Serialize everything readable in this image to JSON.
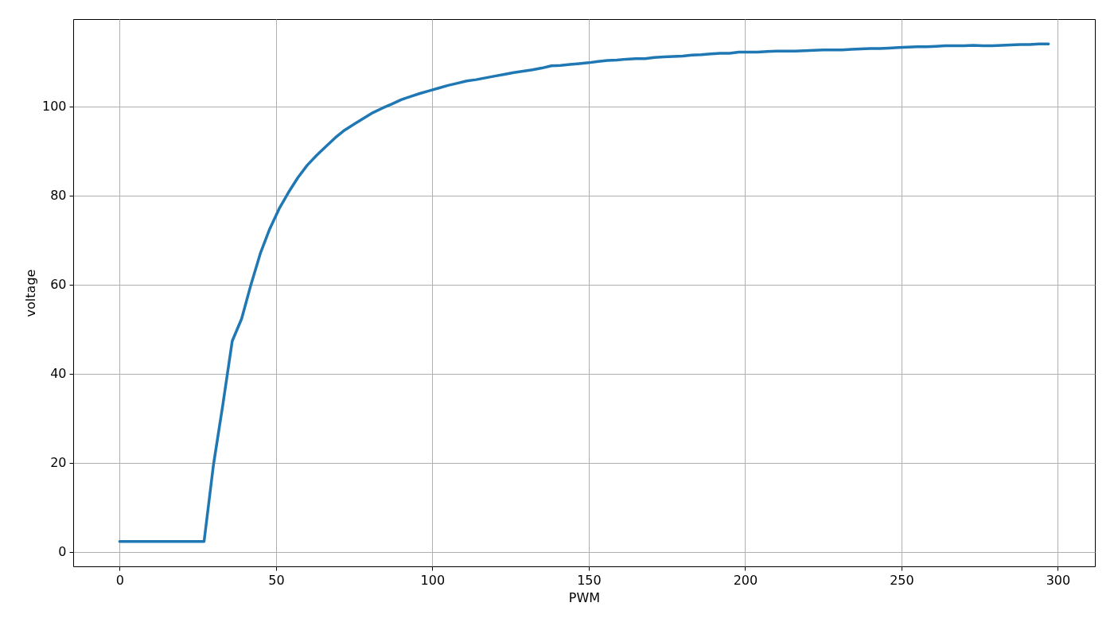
{
  "chart_data": {
    "type": "line",
    "xlabel": "PWM",
    "ylabel": "voltage",
    "x": [
      0,
      3,
      6,
      9,
      12,
      15,
      18,
      21,
      24,
      27,
      30,
      33,
      36,
      39,
      42,
      45,
      48,
      51,
      54,
      57,
      60,
      63,
      66,
      69,
      72,
      75,
      78,
      81,
      84,
      87,
      90,
      93,
      96,
      99,
      102,
      105,
      108,
      111,
      114,
      117,
      120,
      123,
      126,
      129,
      132,
      135,
      138,
      141,
      144,
      147,
      150,
      153,
      156,
      159,
      162,
      165,
      168,
      171,
      174,
      177,
      180,
      183,
      186,
      189,
      192,
      195,
      198,
      201,
      204,
      207,
      210,
      213,
      216,
      219,
      222,
      225,
      228,
      231,
      234,
      237,
      240,
      243,
      246,
      249,
      252,
      255,
      258,
      261,
      264,
      267,
      270,
      273,
      276,
      279,
      282,
      285,
      288,
      291,
      294,
      297
    ],
    "series": [
      {
        "color": "#1f77b4",
        "values": [
          2.3,
          2.3,
          2.3,
          2.3,
          2.3,
          2.3,
          2.3,
          2.3,
          2.3,
          2.3,
          19.5,
          33,
          47.3,
          52.3,
          60,
          67,
          72.5,
          77,
          80.7,
          84,
          86.8,
          89,
          91,
          93,
          94.7,
          96,
          97.3,
          98.6,
          99.6,
          100.5,
          101.5,
          102.2,
          102.9,
          103.5,
          104.1,
          104.7,
          105.2,
          105.7,
          106,
          106.4,
          106.8,
          107.2,
          107.6,
          107.9,
          108.2,
          108.6,
          109.1,
          109.2,
          109.4,
          109.6,
          109.8,
          110.1,
          110.3,
          110.4,
          110.6,
          110.7,
          110.7,
          111,
          111.1,
          111.2,
          111.3,
          111.5,
          111.6,
          111.8,
          111.9,
          111.9,
          112.2,
          112.2,
          112.2,
          112.3,
          112.4,
          112.4,
          112.4,
          112.5,
          112.6,
          112.7,
          112.7,
          112.7,
          112.8,
          112.9,
          113,
          113,
          113.1,
          113.2,
          113.3,
          113.4,
          113.4,
          113.5,
          113.6,
          113.6,
          113.6,
          113.7,
          113.6,
          113.6,
          113.7,
          113.8,
          113.9,
          113.9,
          114,
          114
        ]
      }
    ],
    "xlim": [
      -14.85,
      311.85
    ],
    "ylim": [
      -3.3,
      119.6
    ],
    "xticks": [
      0,
      50,
      100,
      150,
      200,
      250,
      300
    ],
    "yticks": [
      0,
      20,
      40,
      60,
      80,
      100
    ],
    "grid": true,
    "marker": "none",
    "line_style": "solid"
  }
}
